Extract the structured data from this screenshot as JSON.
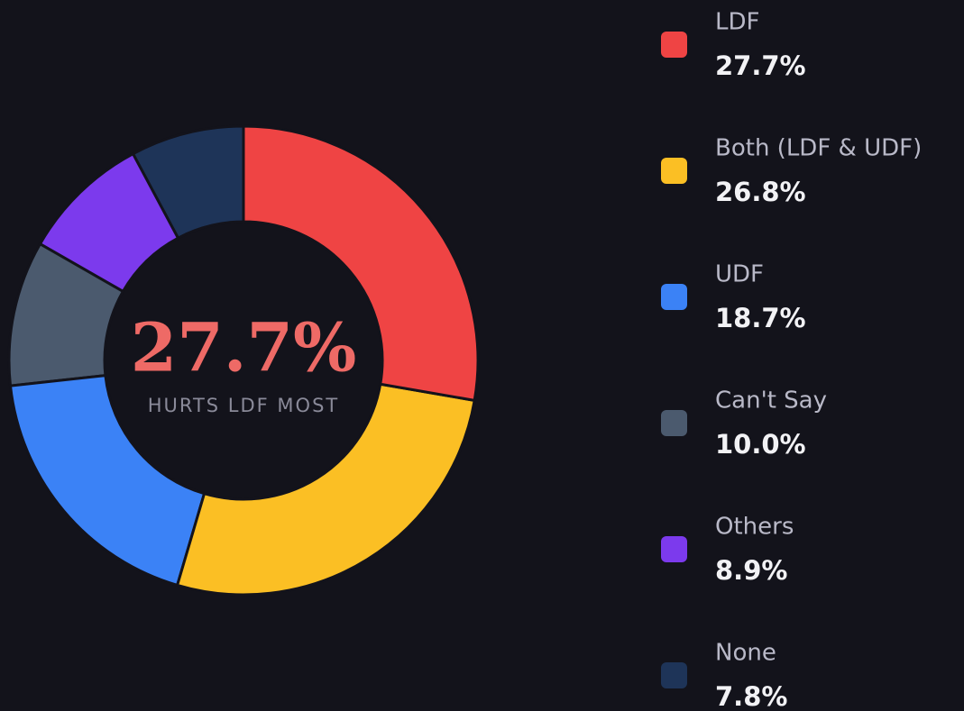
{
  "chart_data": {
    "type": "donut",
    "center_label": "27.7%",
    "center_caption": "HURTS LDF MOST",
    "categories": [
      "LDF",
      "Both (LDF & UDF)",
      "UDF",
      "Can't Say",
      "Others",
      "None"
    ],
    "values": [
      27.7,
      26.8,
      18.7,
      10.0,
      8.9,
      7.8
    ],
    "value_labels": [
      "27.7%",
      "26.8%",
      "18.7%",
      "10.0%",
      "8.9%",
      "7.8%"
    ],
    "colors": [
      "#ef4444",
      "#fbbf24",
      "#3b82f6",
      "#4b5a6e",
      "#7c3aed",
      "#1e3458"
    ]
  }
}
